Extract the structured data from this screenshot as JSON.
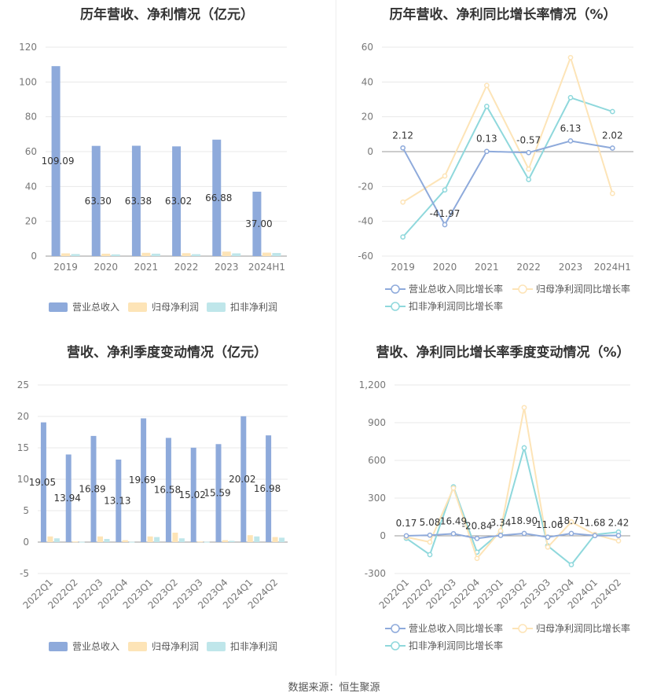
{
  "source": "数据来源：恒生聚源",
  "chart_data": [
    {
      "type": "bar",
      "title": "历年营收、净利情况（亿元）",
      "categories": [
        "2019",
        "2020",
        "2021",
        "2022",
        "2023",
        "2024H1"
      ],
      "ylim": [
        0,
        120
      ],
      "yticks": [
        "0",
        "20",
        "40",
        "60",
        "80",
        "100",
        "120"
      ],
      "legend_position": "bottom",
      "series": [
        {
          "name": "营业总收入",
          "color": "#8eaadb",
          "values": [
            109.09,
            63.3,
            63.38,
            63.02,
            66.88,
            37.0
          ],
          "labels": [
            "109.09",
            "63.30",
            "63.38",
            "63.02",
            "66.88",
            "37.00"
          ]
        },
        {
          "name": "归母净利润",
          "color": "#fde4b7",
          "values": [
            1.6,
            1.4,
            1.9,
            1.7,
            2.6,
            2.0
          ]
        },
        {
          "name": "扣非净利润",
          "color": "#bfe6ea",
          "values": [
            1.2,
            1.0,
            1.4,
            1.1,
            1.6,
            1.8
          ]
        }
      ]
    },
    {
      "type": "line",
      "title": "历年营收、净利同比增长率情况（%）",
      "categories": [
        "2019",
        "2020",
        "2021",
        "2022",
        "2023",
        "2024H1"
      ],
      "ylim": [
        -60,
        60
      ],
      "yticks": [
        "-60",
        "-40",
        "-20",
        "0",
        "20",
        "40",
        "60"
      ],
      "legend_position": "bottom",
      "series": [
        {
          "name": "营业总收入同比增长率",
          "color": "#8eaadb",
          "values": [
            2.12,
            -41.97,
            0.13,
            -0.57,
            6.13,
            2.02
          ],
          "labels": [
            "2.12",
            "-41.97",
            "0.13",
            "-0.57",
            "6.13",
            "2.02"
          ]
        },
        {
          "name": "归母净利润同比增长率",
          "color": "#fde4b7",
          "values": [
            -29,
            -14,
            38,
            -10,
            54,
            -24
          ]
        },
        {
          "name": "扣非净利润同比增长率",
          "color": "#8fd8dc",
          "values": [
            -49,
            -22,
            26,
            -16,
            31,
            23
          ]
        }
      ]
    },
    {
      "type": "bar",
      "title": "营收、净利季度变动情况（亿元）",
      "categories": [
        "2022Q1",
        "2022Q2",
        "2022Q3",
        "2022Q4",
        "2023Q1",
        "2023Q2",
        "2023Q3",
        "2023Q4",
        "2024Q1",
        "2024Q2"
      ],
      "ylim": [
        -5,
        25
      ],
      "yticks": [
        "-5",
        "0",
        "5",
        "10",
        "15",
        "20",
        "25"
      ],
      "legend_position": "bottom",
      "series": [
        {
          "name": "营业总收入",
          "color": "#8eaadb",
          "values": [
            19.05,
            13.94,
            16.89,
            13.13,
            19.69,
            16.58,
            15.02,
            15.59,
            20.02,
            16.98
          ],
          "labels": [
            "19.05",
            "13.94",
            "16.89",
            "13.13",
            "19.69",
            "16.58",
            "15.02",
            "15.59",
            "20.02",
            "16.98"
          ]
        },
        {
          "name": "归母净利润",
          "color": "#fde4b7",
          "values": [
            0.9,
            0.1,
            0.9,
            0.3,
            0.9,
            1.5,
            0.1,
            0.3,
            1.1,
            0.8
          ]
        },
        {
          "name": "扣非净利润",
          "color": "#bfe6ea",
          "values": [
            0.6,
            0.05,
            0.5,
            0.05,
            0.8,
            0.6,
            0.05,
            0.2,
            0.9,
            0.7
          ]
        }
      ]
    },
    {
      "type": "line",
      "title": "营收、净利同比增长率季度变动情况（%）",
      "categories": [
        "2022Q1",
        "2022Q2",
        "2022Q3",
        "2022Q4",
        "2023Q1",
        "2023Q2",
        "2023Q3",
        "2023Q4",
        "2024Q1",
        "2024Q2"
      ],
      "ylim": [
        -300,
        1200
      ],
      "yticks": [
        "-300",
        "0",
        "300",
        "600",
        "900",
        "1,200"
      ],
      "legend_position": "bottom",
      "series": [
        {
          "name": "营业总收入同比增长率",
          "color": "#8eaadb",
          "values": [
            0.17,
            5.08,
            16.49,
            -20.84,
            3.34,
            18.9,
            -11.06,
            18.71,
            1.68,
            2.42
          ],
          "labels": [
            "0.17",
            "5.08",
            "16.49",
            "-20.84",
            "3.34",
            "18.90",
            "-11.06",
            "18.71",
            "1.68",
            "2.42"
          ]
        },
        {
          "name": "归母净利润同比增长率",
          "color": "#fde4b7",
          "values": [
            -10,
            -50,
            380,
            -180,
            40,
            1020,
            -90,
            110,
            10,
            -40
          ]
        },
        {
          "name": "扣非净利润同比增长率",
          "color": "#8fd8dc",
          "values": [
            -20,
            -150,
            390,
            -130,
            30,
            700,
            -80,
            -230,
            10,
            30
          ]
        }
      ]
    }
  ]
}
